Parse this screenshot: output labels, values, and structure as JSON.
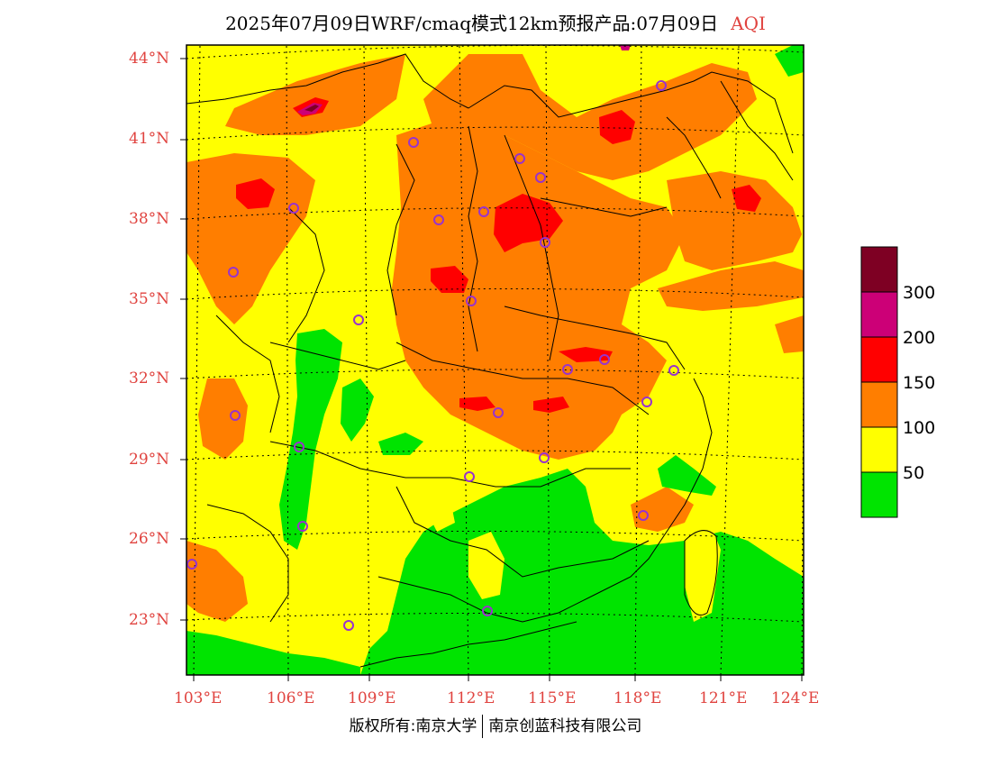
{
  "title": {
    "main": "2025年07月09日WRF/cmaq模式12km预报产品:07月09日",
    "variable": "AQI"
  },
  "lat_labels": [
    "44°N",
    "41°N",
    "38°N",
    "35°N",
    "32°N",
    "29°N",
    "26°N",
    "23°N"
  ],
  "lon_labels": [
    "103°E",
    "106°E",
    "109°E",
    "112°E",
    "115°E",
    "118°E",
    "121°E",
    "124°E"
  ],
  "legend": {
    "labels": [
      "300",
      "200",
      "150",
      "100",
      "50"
    ],
    "colors": {
      "level_0_50": "#00e400",
      "level_50_100": "#ffff00",
      "level_100_150": "#ff7e00",
      "level_150_200": "#ff0000",
      "level_200_300": "#cc0077",
      "level_300_plus": "#7e0023"
    }
  },
  "credit": {
    "left": "版权所有:南京大学",
    "right": "南京创蓝科技有限公司"
  },
  "marker_color": "#9933cc"
}
